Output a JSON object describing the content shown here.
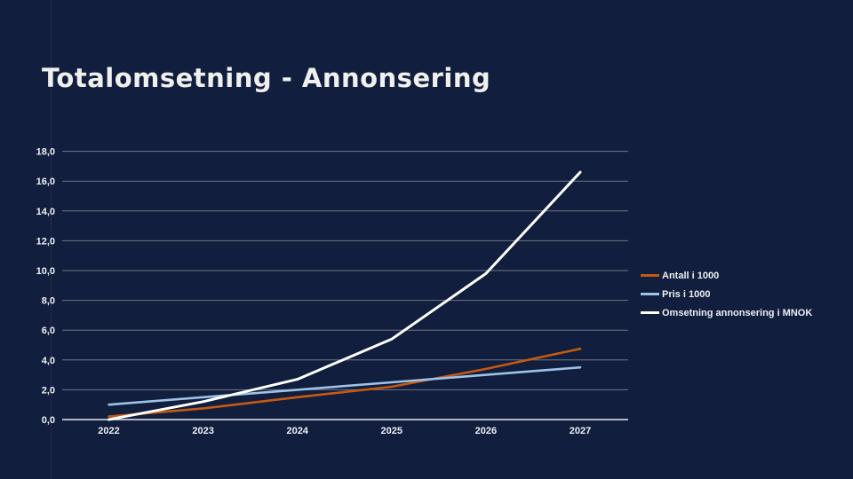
{
  "slide": {
    "title": "Totalomsetning - Annonsering",
    "background_color": "#111E3D"
  },
  "chart_data": {
    "type": "line",
    "title": "Totalomsetning - Annonsering",
    "categories": [
      "2022",
      "2023",
      "2024",
      "2025",
      "2026",
      "2027"
    ],
    "series": [
      {
        "name": "Antall i 1000",
        "color": "#C55A11",
        "values": [
          0.2,
          0.75,
          1.5,
          2.2,
          3.4,
          4.75
        ]
      },
      {
        "name": "Pris i 1000",
        "color": "#9DC3E6",
        "values": [
          1.0,
          1.5,
          2.0,
          2.5,
          3.0,
          3.5
        ]
      },
      {
        "name": "Omsetning annonsering i MNOK",
        "color": "#FFFFFF",
        "values": [
          0.0,
          1.2,
          2.7,
          5.4,
          9.8,
          16.6
        ]
      }
    ],
    "ylim": [
      0,
      18
    ],
    "y_tick_step": 2,
    "y_tick_labels": [
      "0,0",
      "2,0",
      "4,0",
      "6,0",
      "8,0",
      "10,0",
      "12,0",
      "14,0",
      "16,0",
      "18,0"
    ],
    "xlabel": "",
    "ylabel": "",
    "grid": "horizontal",
    "legend_position": "right",
    "colors": {
      "gridline": "#6F7584",
      "axis_line": "#E6E9F0",
      "tick_label": "#EDEFF4"
    }
  }
}
